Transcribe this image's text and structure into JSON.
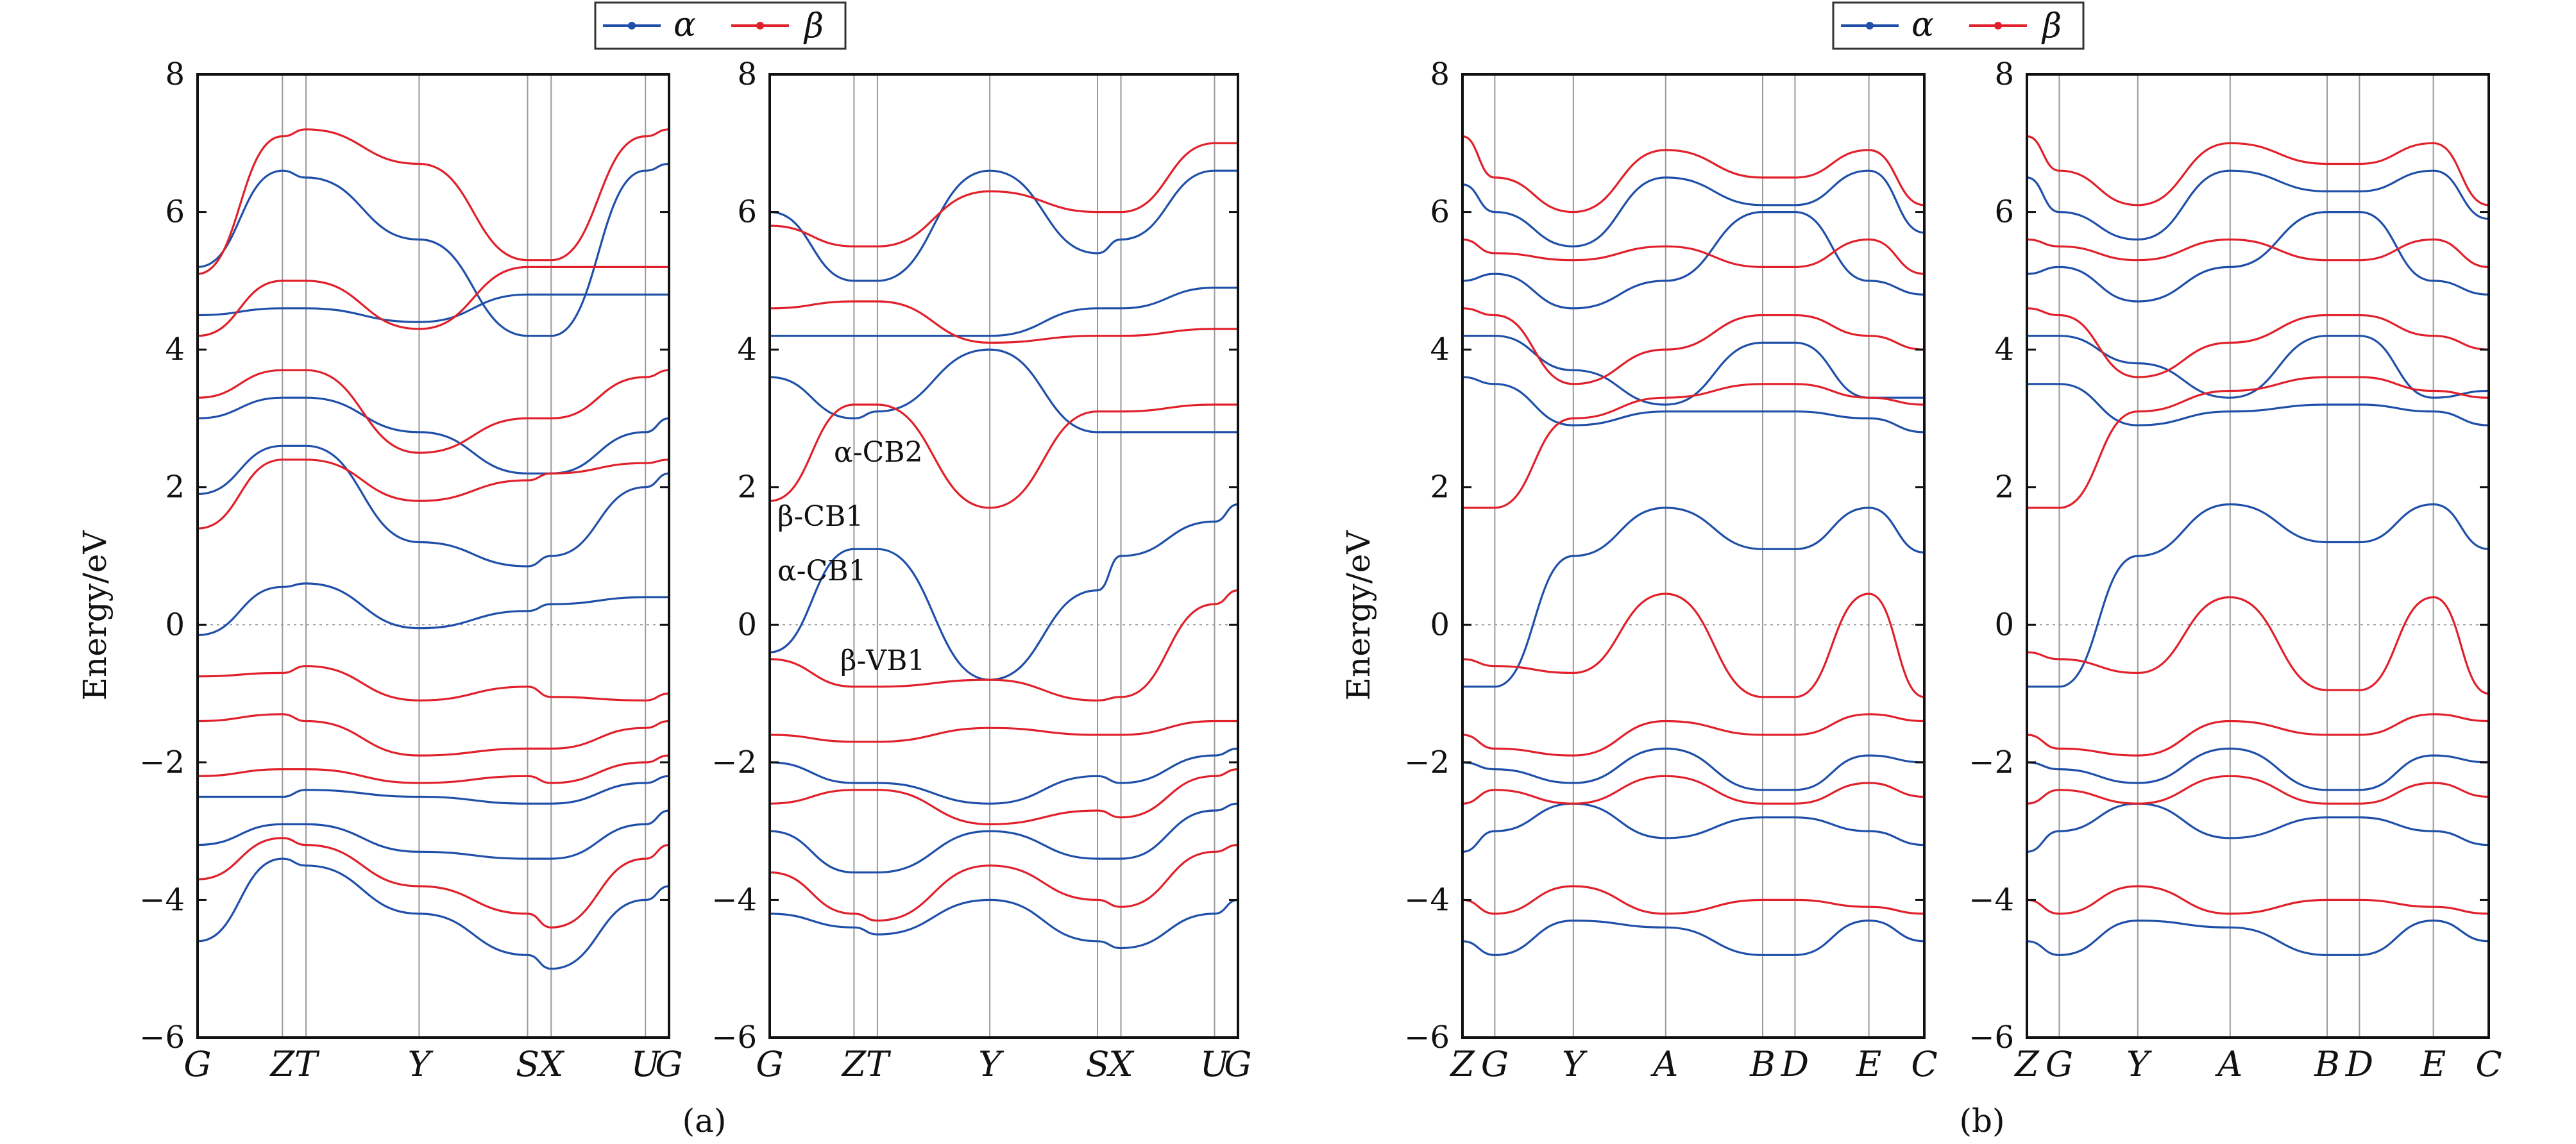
{
  "colors": {
    "alpha": "#1f4fa8",
    "beta": "#e0202a",
    "grid": "#9a9a9a",
    "fermi": "#9a9a9a",
    "frame": "#111111"
  },
  "legend": {
    "alpha_label": "α",
    "beta_label": "β"
  },
  "subfigure_labels": [
    "(a)",
    "(b)"
  ],
  "chart_data": [
    {
      "type": "line",
      "panel": "a-left",
      "ylabel": "Energy/eV",
      "ylim": [
        -6,
        8
      ],
      "yticks": [
        -6,
        -4,
        -2,
        0,
        2,
        4,
        6,
        8
      ],
      "kpath": [
        "G",
        "Z",
        "T",
        "Y",
        "S",
        "X",
        "U",
        "G"
      ],
      "kpos": [
        0,
        0.18,
        0.23,
        0.47,
        0.7,
        0.75,
        0.95,
        1.0
      ],
      "fermi_level": 0,
      "legend_location": "top-center",
      "grid": "vertical lines at high-symmetry points",
      "series": [
        {
          "name": "α",
          "color_key": "alpha",
          "bands": [
            [
              -0.15,
              0.55,
              0.6,
              -0.05,
              0.2,
              0.3,
              0.4,
              0.4
            ],
            [
              1.9,
              2.6,
              2.6,
              1.2,
              0.85,
              1.0,
              2.0,
              2.2
            ],
            [
              3.0,
              3.3,
              3.3,
              2.8,
              2.2,
              2.2,
              2.8,
              3.0
            ],
            [
              4.5,
              4.6,
              4.6,
              4.4,
              4.8,
              4.8,
              4.8,
              4.8
            ],
            [
              5.2,
              6.6,
              6.5,
              5.6,
              4.2,
              4.2,
              6.6,
              6.7
            ],
            [
              -2.5,
              -2.5,
              -2.4,
              -2.5,
              -2.6,
              -2.6,
              -2.3,
              -2.2
            ],
            [
              -3.2,
              -2.9,
              -2.9,
              -3.3,
              -3.4,
              -3.4,
              -2.9,
              -2.7
            ],
            [
              -4.6,
              -3.4,
              -3.5,
              -4.2,
              -4.8,
              -5.0,
              -4.0,
              -3.8
            ]
          ]
        },
        {
          "name": "β",
          "color_key": "beta",
          "bands": [
            [
              -0.75,
              -0.7,
              -0.6,
              -1.1,
              -0.9,
              -1.05,
              -1.1,
              -1.0
            ],
            [
              1.4,
              2.4,
              2.4,
              1.8,
              2.1,
              2.2,
              2.35,
              2.4
            ],
            [
              3.3,
              3.7,
              3.7,
              2.5,
              3.0,
              3.0,
              3.6,
              3.7
            ],
            [
              4.2,
              5.0,
              5.0,
              4.3,
              5.2,
              5.2,
              5.2,
              5.2
            ],
            [
              5.1,
              7.1,
              7.2,
              6.7,
              5.3,
              5.3,
              7.1,
              7.2
            ],
            [
              -1.4,
              -1.3,
              -1.4,
              -1.9,
              -1.8,
              -1.8,
              -1.5,
              -1.4
            ],
            [
              -2.2,
              -2.1,
              -2.1,
              -2.3,
              -2.2,
              -2.3,
              -2.0,
              -1.9
            ],
            [
              -3.7,
              -3.1,
              -3.2,
              -3.8,
              -4.2,
              -4.4,
              -3.4,
              -3.2
            ]
          ]
        }
      ]
    },
    {
      "type": "line",
      "panel": "a-right",
      "ylim": [
        -6,
        8
      ],
      "yticks": [
        -6,
        -4,
        -2,
        0,
        2,
        4,
        6,
        8
      ],
      "kpath": [
        "G",
        "Z",
        "T",
        "Y",
        "S",
        "X",
        "U",
        "G"
      ],
      "kpos": [
        0,
        0.18,
        0.23,
        0.47,
        0.7,
        0.75,
        0.95,
        1.0
      ],
      "fermi_level": 0,
      "annotations": [
        "α-CB2",
        "β-CB1",
        "α-CB1",
        "β-VB1"
      ],
      "series": [
        {
          "name": "α",
          "color_key": "alpha",
          "bands": [
            [
              -0.4,
              1.1,
              1.1,
              -0.8,
              0.5,
              1.0,
              1.5,
              1.75
            ],
            [
              3.6,
              3.0,
              3.1,
              4.0,
              2.8,
              2.8,
              2.8,
              2.8
            ],
            [
              4.2,
              4.2,
              4.2,
              4.2,
              4.6,
              4.6,
              4.9,
              4.9
            ],
            [
              6.0,
              5.0,
              5.0,
              6.6,
              5.4,
              5.6,
              6.6,
              6.6
            ],
            [
              -2.0,
              -2.3,
              -2.3,
              -2.6,
              -2.2,
              -2.3,
              -1.9,
              -1.8
            ],
            [
              -3.0,
              -3.6,
              -3.6,
              -3.0,
              -3.4,
              -3.4,
              -2.7,
              -2.6
            ],
            [
              -4.2,
              -4.4,
              -4.5,
              -4.0,
              -4.6,
              -4.7,
              -4.2,
              -4.0
            ]
          ]
        },
        {
          "name": "β",
          "color_key": "beta",
          "bands": [
            [
              -0.5,
              -0.9,
              -0.9,
              -0.8,
              -1.1,
              -1.05,
              0.3,
              0.5
            ],
            [
              1.8,
              3.2,
              3.2,
              1.7,
              3.1,
              3.1,
              3.2,
              3.2
            ],
            [
              4.6,
              4.7,
              4.7,
              4.1,
              4.2,
              4.2,
              4.3,
              4.3
            ],
            [
              5.8,
              5.5,
              5.5,
              6.3,
              6.0,
              6.0,
              7.0,
              7.0
            ],
            [
              -1.6,
              -1.7,
              -1.7,
              -1.5,
              -1.6,
              -1.6,
              -1.4,
              -1.4
            ],
            [
              -2.6,
              -2.4,
              -2.4,
              -2.9,
              -2.7,
              -2.8,
              -2.2,
              -2.1
            ],
            [
              -3.6,
              -4.2,
              -4.3,
              -3.5,
              -4.0,
              -4.1,
              -3.3,
              -3.2
            ]
          ]
        }
      ]
    },
    {
      "type": "line",
      "panel": "b-left",
      "ylabel": "Energy/eV",
      "ylim": [
        -6,
        8
      ],
      "yticks": [
        -6,
        -4,
        -2,
        0,
        2,
        4,
        6,
        8
      ],
      "kpath": [
        "Z",
        "G",
        "Y",
        "A",
        "B",
        "D",
        "E",
        "C"
      ],
      "kpos": [
        0,
        0.07,
        0.24,
        0.44,
        0.65,
        0.72,
        0.88,
        1.0
      ],
      "fermi_level": 0,
      "legend_location": "top-center",
      "series": [
        {
          "name": "α",
          "color_key": "alpha",
          "bands": [
            [
              -0.9,
              -0.9,
              1.0,
              1.7,
              1.1,
              1.1,
              1.7,
              1.05
            ],
            [
              3.6,
              3.5,
              2.9,
              3.1,
              3.1,
              3.1,
              3.0,
              2.8
            ],
            [
              4.2,
              4.2,
              3.7,
              3.2,
              4.1,
              4.1,
              3.3,
              3.3
            ],
            [
              5.0,
              5.1,
              4.6,
              5.0,
              6.0,
              6.0,
              5.0,
              4.8
            ],
            [
              6.4,
              6.0,
              5.5,
              6.5,
              6.1,
              6.1,
              6.6,
              5.7
            ],
            [
              -2.0,
              -2.1,
              -2.3,
              -1.8,
              -2.4,
              -2.4,
              -1.9,
              -2.0
            ],
            [
              -3.3,
              -3.0,
              -2.6,
              -3.1,
              -2.8,
              -2.8,
              -3.0,
              -3.2
            ],
            [
              -4.6,
              -4.8,
              -4.3,
              -4.4,
              -4.8,
              -4.8,
              -4.3,
              -4.6
            ]
          ]
        },
        {
          "name": "β",
          "color_key": "beta",
          "bands": [
            [
              -0.5,
              -0.6,
              -0.7,
              0.45,
              -1.05,
              -1.05,
              0.45,
              -1.05
            ],
            [
              1.7,
              1.7,
              3.0,
              3.3,
              3.5,
              3.5,
              3.3,
              3.2
            ],
            [
              4.6,
              4.5,
              3.5,
              4.0,
              4.5,
              4.5,
              4.2,
              4.0
            ],
            [
              5.6,
              5.4,
              5.3,
              5.5,
              5.2,
              5.2,
              5.6,
              5.1
            ],
            [
              7.1,
              6.5,
              6.0,
              6.9,
              6.5,
              6.5,
              6.9,
              6.1
            ],
            [
              -1.6,
              -1.8,
              -1.9,
              -1.4,
              -1.6,
              -1.6,
              -1.3,
              -1.4
            ],
            [
              -2.6,
              -2.4,
              -2.6,
              -2.2,
              -2.6,
              -2.6,
              -2.3,
              -2.5
            ],
            [
              -4.0,
              -4.2,
              -3.8,
              -4.2,
              -4.0,
              -4.0,
              -4.1,
              -4.2
            ]
          ]
        }
      ]
    },
    {
      "type": "line",
      "panel": "b-right",
      "ylim": [
        -6,
        8
      ],
      "yticks": [
        -6,
        -4,
        -2,
        0,
        2,
        4,
        6,
        8
      ],
      "kpath": [
        "Z",
        "G",
        "Y",
        "A",
        "B",
        "D",
        "E",
        "C"
      ],
      "kpos": [
        0,
        0.07,
        0.24,
        0.44,
        0.65,
        0.72,
        0.88,
        1.0
      ],
      "fermi_level": 0,
      "series": [
        {
          "name": "α",
          "color_key": "alpha",
          "bands": [
            [
              -0.9,
              -0.9,
              1.0,
              1.75,
              1.2,
              1.2,
              1.75,
              1.1
            ],
            [
              3.5,
              3.5,
              2.9,
              3.1,
              3.2,
              3.2,
              3.1,
              2.9
            ],
            [
              4.2,
              4.2,
              3.8,
              3.3,
              4.2,
              4.2,
              3.3,
              3.4
            ],
            [
              5.1,
              5.2,
              4.7,
              5.2,
              6.0,
              6.0,
              5.0,
              4.8
            ],
            [
              6.5,
              6.0,
              5.6,
              6.6,
              6.3,
              6.3,
              6.6,
              5.9
            ],
            [
              -2.0,
              -2.1,
              -2.3,
              -1.8,
              -2.4,
              -2.4,
              -1.9,
              -2.0
            ],
            [
              -3.3,
              -3.0,
              -2.6,
              -3.1,
              -2.8,
              -2.8,
              -3.0,
              -3.2
            ],
            [
              -4.6,
              -4.8,
              -4.3,
              -4.4,
              -4.8,
              -4.8,
              -4.3,
              -4.6
            ]
          ]
        },
        {
          "name": "β",
          "color_key": "beta",
          "bands": [
            [
              -0.4,
              -0.5,
              -0.7,
              0.4,
              -0.95,
              -0.95,
              0.4,
              -1.0
            ],
            [
              1.7,
              1.7,
              3.1,
              3.4,
              3.6,
              3.6,
              3.4,
              3.3
            ],
            [
              4.6,
              4.5,
              3.6,
              4.1,
              4.5,
              4.5,
              4.2,
              4.0
            ],
            [
              5.6,
              5.5,
              5.3,
              5.6,
              5.3,
              5.3,
              5.6,
              5.2
            ],
            [
              7.1,
              6.6,
              6.1,
              7.0,
              6.7,
              6.7,
              7.0,
              6.1
            ],
            [
              -1.6,
              -1.8,
              -1.9,
              -1.4,
              -1.6,
              -1.6,
              -1.3,
              -1.4
            ],
            [
              -2.6,
              -2.4,
              -2.6,
              -2.2,
              -2.6,
              -2.6,
              -2.3,
              -2.5
            ],
            [
              -4.0,
              -4.2,
              -3.8,
              -4.2,
              -4.0,
              -4.0,
              -4.1,
              -4.2
            ]
          ]
        }
      ]
    }
  ]
}
